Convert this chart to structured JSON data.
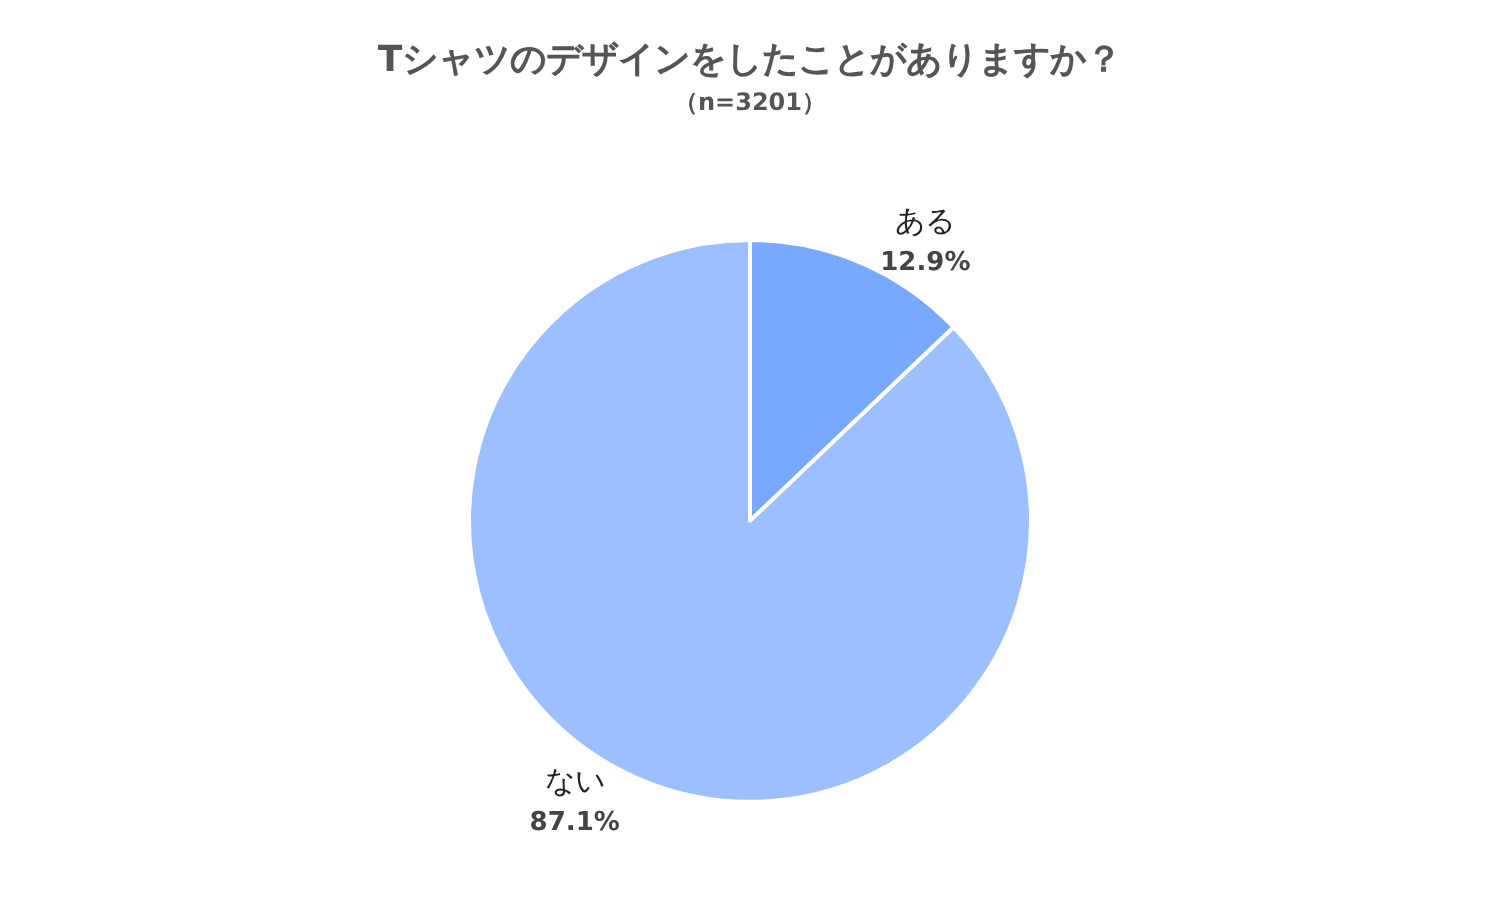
{
  "chart_data": {
    "type": "pie",
    "title": "Tシャツのデザインをしたことがありますか？",
    "subtitle": "（n=3201）",
    "categories": [
      "ある",
      "ない"
    ],
    "values": [
      12.9,
      87.1
    ],
    "value_labels": [
      "12.9%",
      "87.1%"
    ],
    "colors": [
      "#78a9ff",
      "#9bbfff"
    ]
  }
}
